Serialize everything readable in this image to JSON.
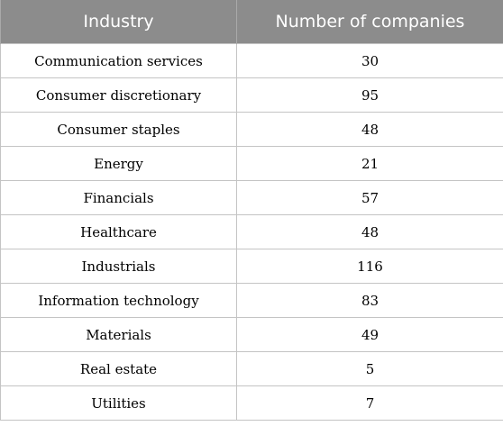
{
  "table": {
    "headers": {
      "industry": "Industry",
      "count": "Number of companies"
    },
    "rows": [
      {
        "industry": "Communication services",
        "count": "30"
      },
      {
        "industry": "Consumer discretionary",
        "count": "95"
      },
      {
        "industry": "Consumer staples",
        "count": "48"
      },
      {
        "industry": "Energy",
        "count": "21"
      },
      {
        "industry": "Financials",
        "count": "57"
      },
      {
        "industry": "Healthcare",
        "count": "48"
      },
      {
        "industry": "Industrials",
        "count": "116"
      },
      {
        "industry": "Information technology",
        "count": "83"
      },
      {
        "industry": "Materials",
        "count": "49"
      },
      {
        "industry": "Real estate",
        "count": "5"
      },
      {
        "industry": "Utilities",
        "count": "7"
      }
    ]
  }
}
